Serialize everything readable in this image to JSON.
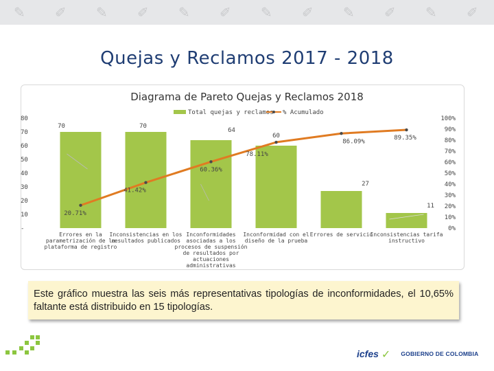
{
  "slide": {
    "title": "Quejas y Reclamos 2017 - 2018",
    "note": "Este gráfico muestra las seis más representativas tipologías de inconformidades, el 10,65% faltante está distribuido en 15 tipologías.",
    "logos": {
      "icfes": "icfes",
      "gov": "GOBIERNO DE COLOMBIA"
    }
  },
  "chart_data": {
    "type": "bar",
    "title": "Diagrama de Pareto Quejas y Reclamos 2018",
    "categories": [
      [
        "Errores en la",
        "parametrización de la",
        "plataforma de registro"
      ],
      [
        "Inconsistencias en los",
        "resultados publicados"
      ],
      [
        "Inconformidades",
        "asociadas a los",
        "procesos de suspensión",
        "de resultados por",
        "actuaciones",
        "administrativas"
      ],
      [
        "Inconformidad con el",
        "diseño de la prueba"
      ],
      [
        "Errores de servicio"
      ],
      [
        "Inconsistencias tarifa",
        "instructivo"
      ]
    ],
    "series": [
      {
        "name": "Total quejas y reclamos",
        "kind": "bar",
        "axis": "left",
        "color": "#a3c64a",
        "values": [
          70,
          70,
          64,
          60,
          27,
          11
        ],
        "labels": [
          "70",
          "70",
          "64",
          "60",
          "27",
          "11"
        ]
      },
      {
        "name": "% Acumulado",
        "kind": "line",
        "axis": "right",
        "color": "#e07b22",
        "values": [
          20.71,
          41.42,
          60.36,
          78.11,
          86.09,
          89.35
        ],
        "labels": [
          "20.71%",
          "41.42%",
          "60.36%",
          "78.11%",
          "86.09%",
          "89.35%"
        ]
      }
    ],
    "left_axis": {
      "min": 0,
      "max": 80,
      "ticks": [
        "-",
        "10",
        "20",
        "30",
        "40",
        "50",
        "60",
        "70",
        "80"
      ]
    },
    "right_axis": {
      "min": 0,
      "max": 100,
      "ticks": [
        "0%",
        "10%",
        "20%",
        "30%",
        "40%",
        "50%",
        "60%",
        "70%",
        "80%",
        "90%",
        "100%"
      ]
    },
    "legend": "top-center",
    "grid": false
  }
}
